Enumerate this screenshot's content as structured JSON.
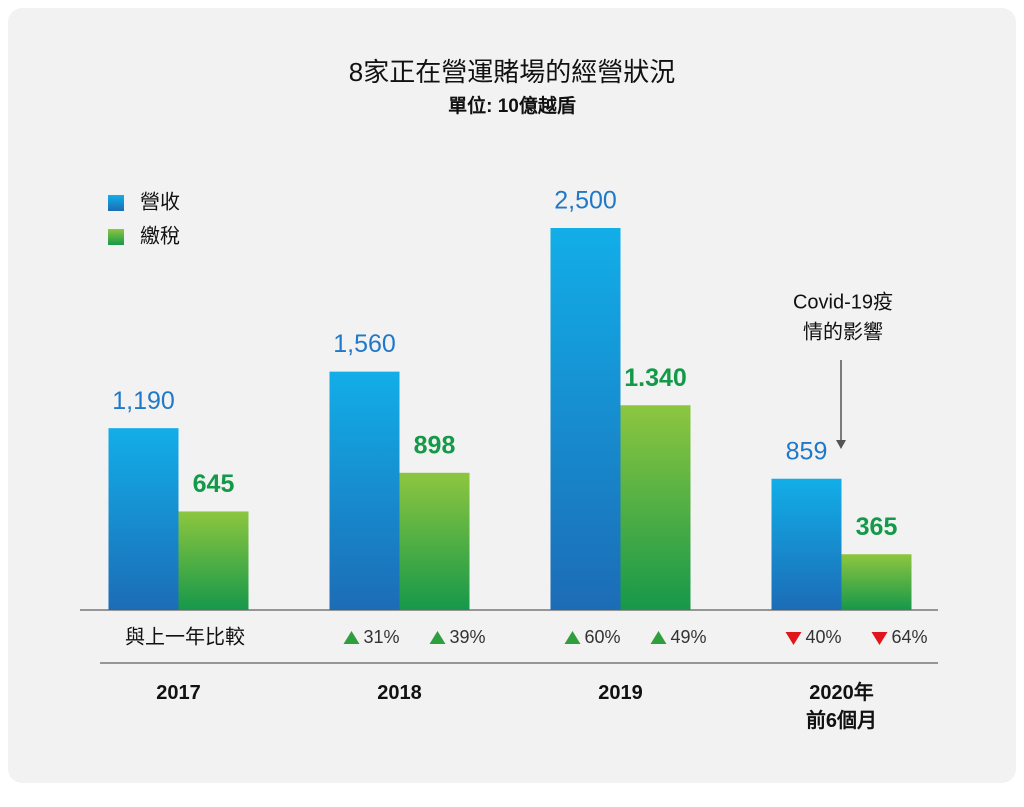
{
  "chart_data": {
    "type": "bar",
    "title": "8家正在營運賭場的經營狀況",
    "subtitle": "單位: 10億越盾",
    "categories": [
      "2017",
      "2018",
      "2019",
      "2020年\n前6個月"
    ],
    "ylim": [
      0,
      2500
    ],
    "legend": "top-left",
    "series": [
      {
        "name": "營收",
        "color": "#1a9fe0",
        "label_color": "#1f78c8",
        "values": [
          1190,
          1560,
          2500,
          859
        ],
        "value_labels": [
          "1,190",
          "1,560",
          "2,500",
          "859"
        ],
        "change": [
          null,
          31,
          60,
          -40
        ],
        "change_labels": [
          null,
          "31%",
          "60%",
          "40%"
        ]
      },
      {
        "name": "繳稅",
        "color": "#7cc242",
        "label_color": "#139a48",
        "values": [
          645,
          898,
          1340,
          365
        ],
        "value_labels": [
          "645",
          "898",
          "1.340",
          "365"
        ],
        "change": [
          null,
          39,
          49,
          -64
        ],
        "change_labels": [
          null,
          "39%",
          "49%",
          "64%"
        ]
      }
    ],
    "comparison_label": "與上一年比較",
    "annotation": [
      "Covid-19疫",
      "情的影響"
    ]
  }
}
